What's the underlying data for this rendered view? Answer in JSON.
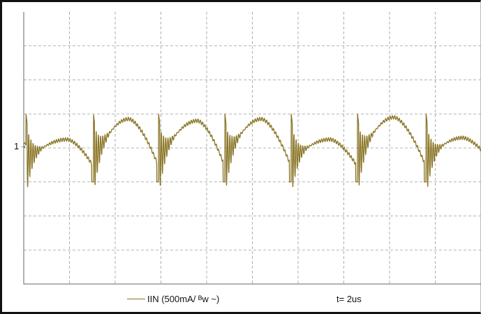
{
  "colors": {
    "trace": "#8a7628",
    "grid": "#9a9a9a",
    "border": "#111111",
    "background": "#ffffff"
  },
  "channel_marker": {
    "label": "1",
    "arrow": "→"
  },
  "legend": {
    "trace_label": "IIN (500mA/ ᴮw ~)",
    "timebase_label": "t= 2us"
  },
  "chart_data": {
    "type": "line",
    "title": "",
    "xlabel": "",
    "ylabel": "",
    "grid": true,
    "x_divisions": 10,
    "y_divisions": 8,
    "xlim": [
      0,
      20
    ],
    "ylim": [
      -4,
      4
    ],
    "x_unit": "us",
    "y_unit": "div",
    "series": [
      {
        "name": "IIN (500mA/ ᴮw ~)",
        "ringing_starts_us": [
          0.1,
          3.05,
          5.9,
          8.8,
          11.7,
          14.6,
          17.6
        ],
        "arch_peaks_us": [
          1.9,
          4.6,
          7.6,
          10.4,
          13.4,
          16.2,
          19.2
        ],
        "arch_peak_div": [
          0.25,
          0.85,
          0.8,
          0.85,
          0.25,
          0.9,
          0.3
        ],
        "ring_min_div": -1.2,
        "ring_max_div": 1.0,
        "baseline_div": 0.0
      }
    ]
  }
}
